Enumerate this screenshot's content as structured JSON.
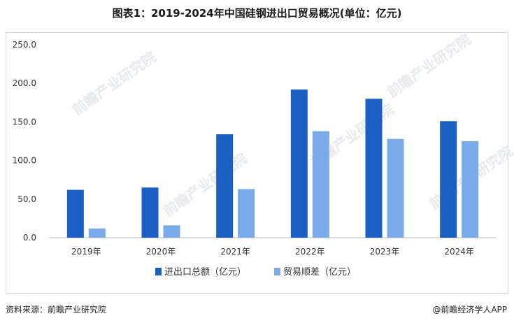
{
  "title": "图表1：2019-2024年中国硅钢进出口贸易概况(单位：亿元)",
  "source": "资料来源：前瞻产业研究院",
  "brand": "@前瞻经济学人APP",
  "watermark": "前瞻产业研究院",
  "colors": {
    "series1": "#1a5fc2",
    "series2": "#79aaea"
  },
  "chart_data": {
    "type": "bar",
    "categories": [
      "2019年",
      "2020年",
      "2021年",
      "2022年",
      "2023年",
      "2024年"
    ],
    "series": [
      {
        "name": "进出口总额（亿元）",
        "values": [
          62,
          65,
          134,
          192,
          180,
          151
        ]
      },
      {
        "name": "贸易顺差（亿元）",
        "values": [
          12,
          16,
          63,
          138,
          128,
          125
        ]
      }
    ],
    "yticks": [
      "0.0",
      "50.0",
      "100.0",
      "150.0",
      "200.0",
      "250.0"
    ],
    "ylim": [
      0,
      250
    ],
    "grid": false,
    "legend": "bottom"
  }
}
